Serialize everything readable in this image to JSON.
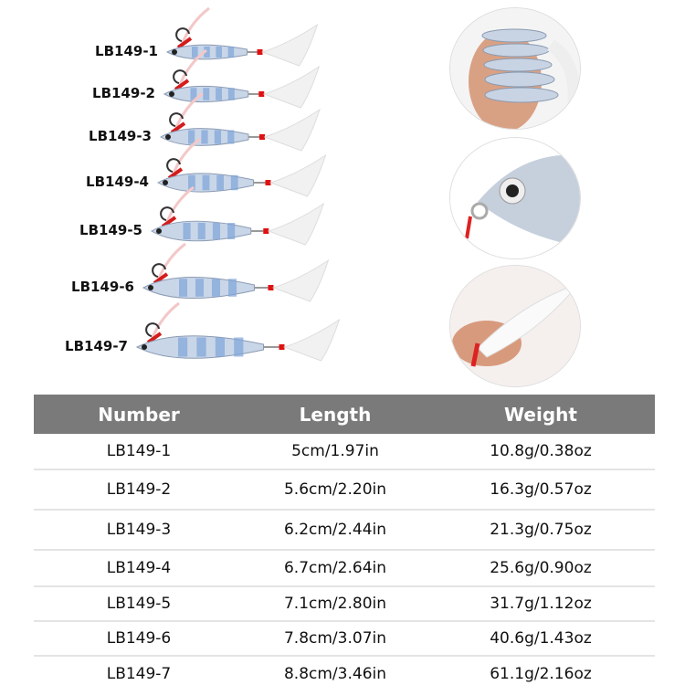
{
  "lures": [
    {
      "label": "LB149-1"
    },
    {
      "label": "LB149-2"
    },
    {
      "label": "LB149-3"
    },
    {
      "label": "LB149-4"
    },
    {
      "label": "LB149-5"
    },
    {
      "label": "LB149-6"
    },
    {
      "label": "LB149-7"
    }
  ],
  "detail_photos": [
    "hand-holding-lures",
    "lure-eye-closeup",
    "feather-hook-closeup"
  ],
  "table": {
    "headers": [
      "Number",
      "Length",
      "Weight"
    ],
    "rows": [
      [
        "LB149-1",
        "5cm/1.97in",
        "10.8g/0.38oz"
      ],
      [
        "LB149-2",
        "5.6cm/2.20in",
        "16.3g/0.57oz"
      ],
      [
        "LB149-3",
        "6.2cm/2.44in",
        "21.3g/0.75oz"
      ],
      [
        "LB149-4",
        "6.7cm/2.64in",
        "25.6g/0.90oz"
      ],
      [
        "LB149-5",
        "7.1cm/2.80in",
        "31.7g/1.12oz"
      ],
      [
        "LB149-6",
        "7.8cm/3.07in",
        "40.6g/1.43oz"
      ],
      [
        "LB149-7",
        "8.8cm/3.46in",
        "61.1g/2.16oz"
      ]
    ],
    "header_color": "#7a7a7a"
  }
}
